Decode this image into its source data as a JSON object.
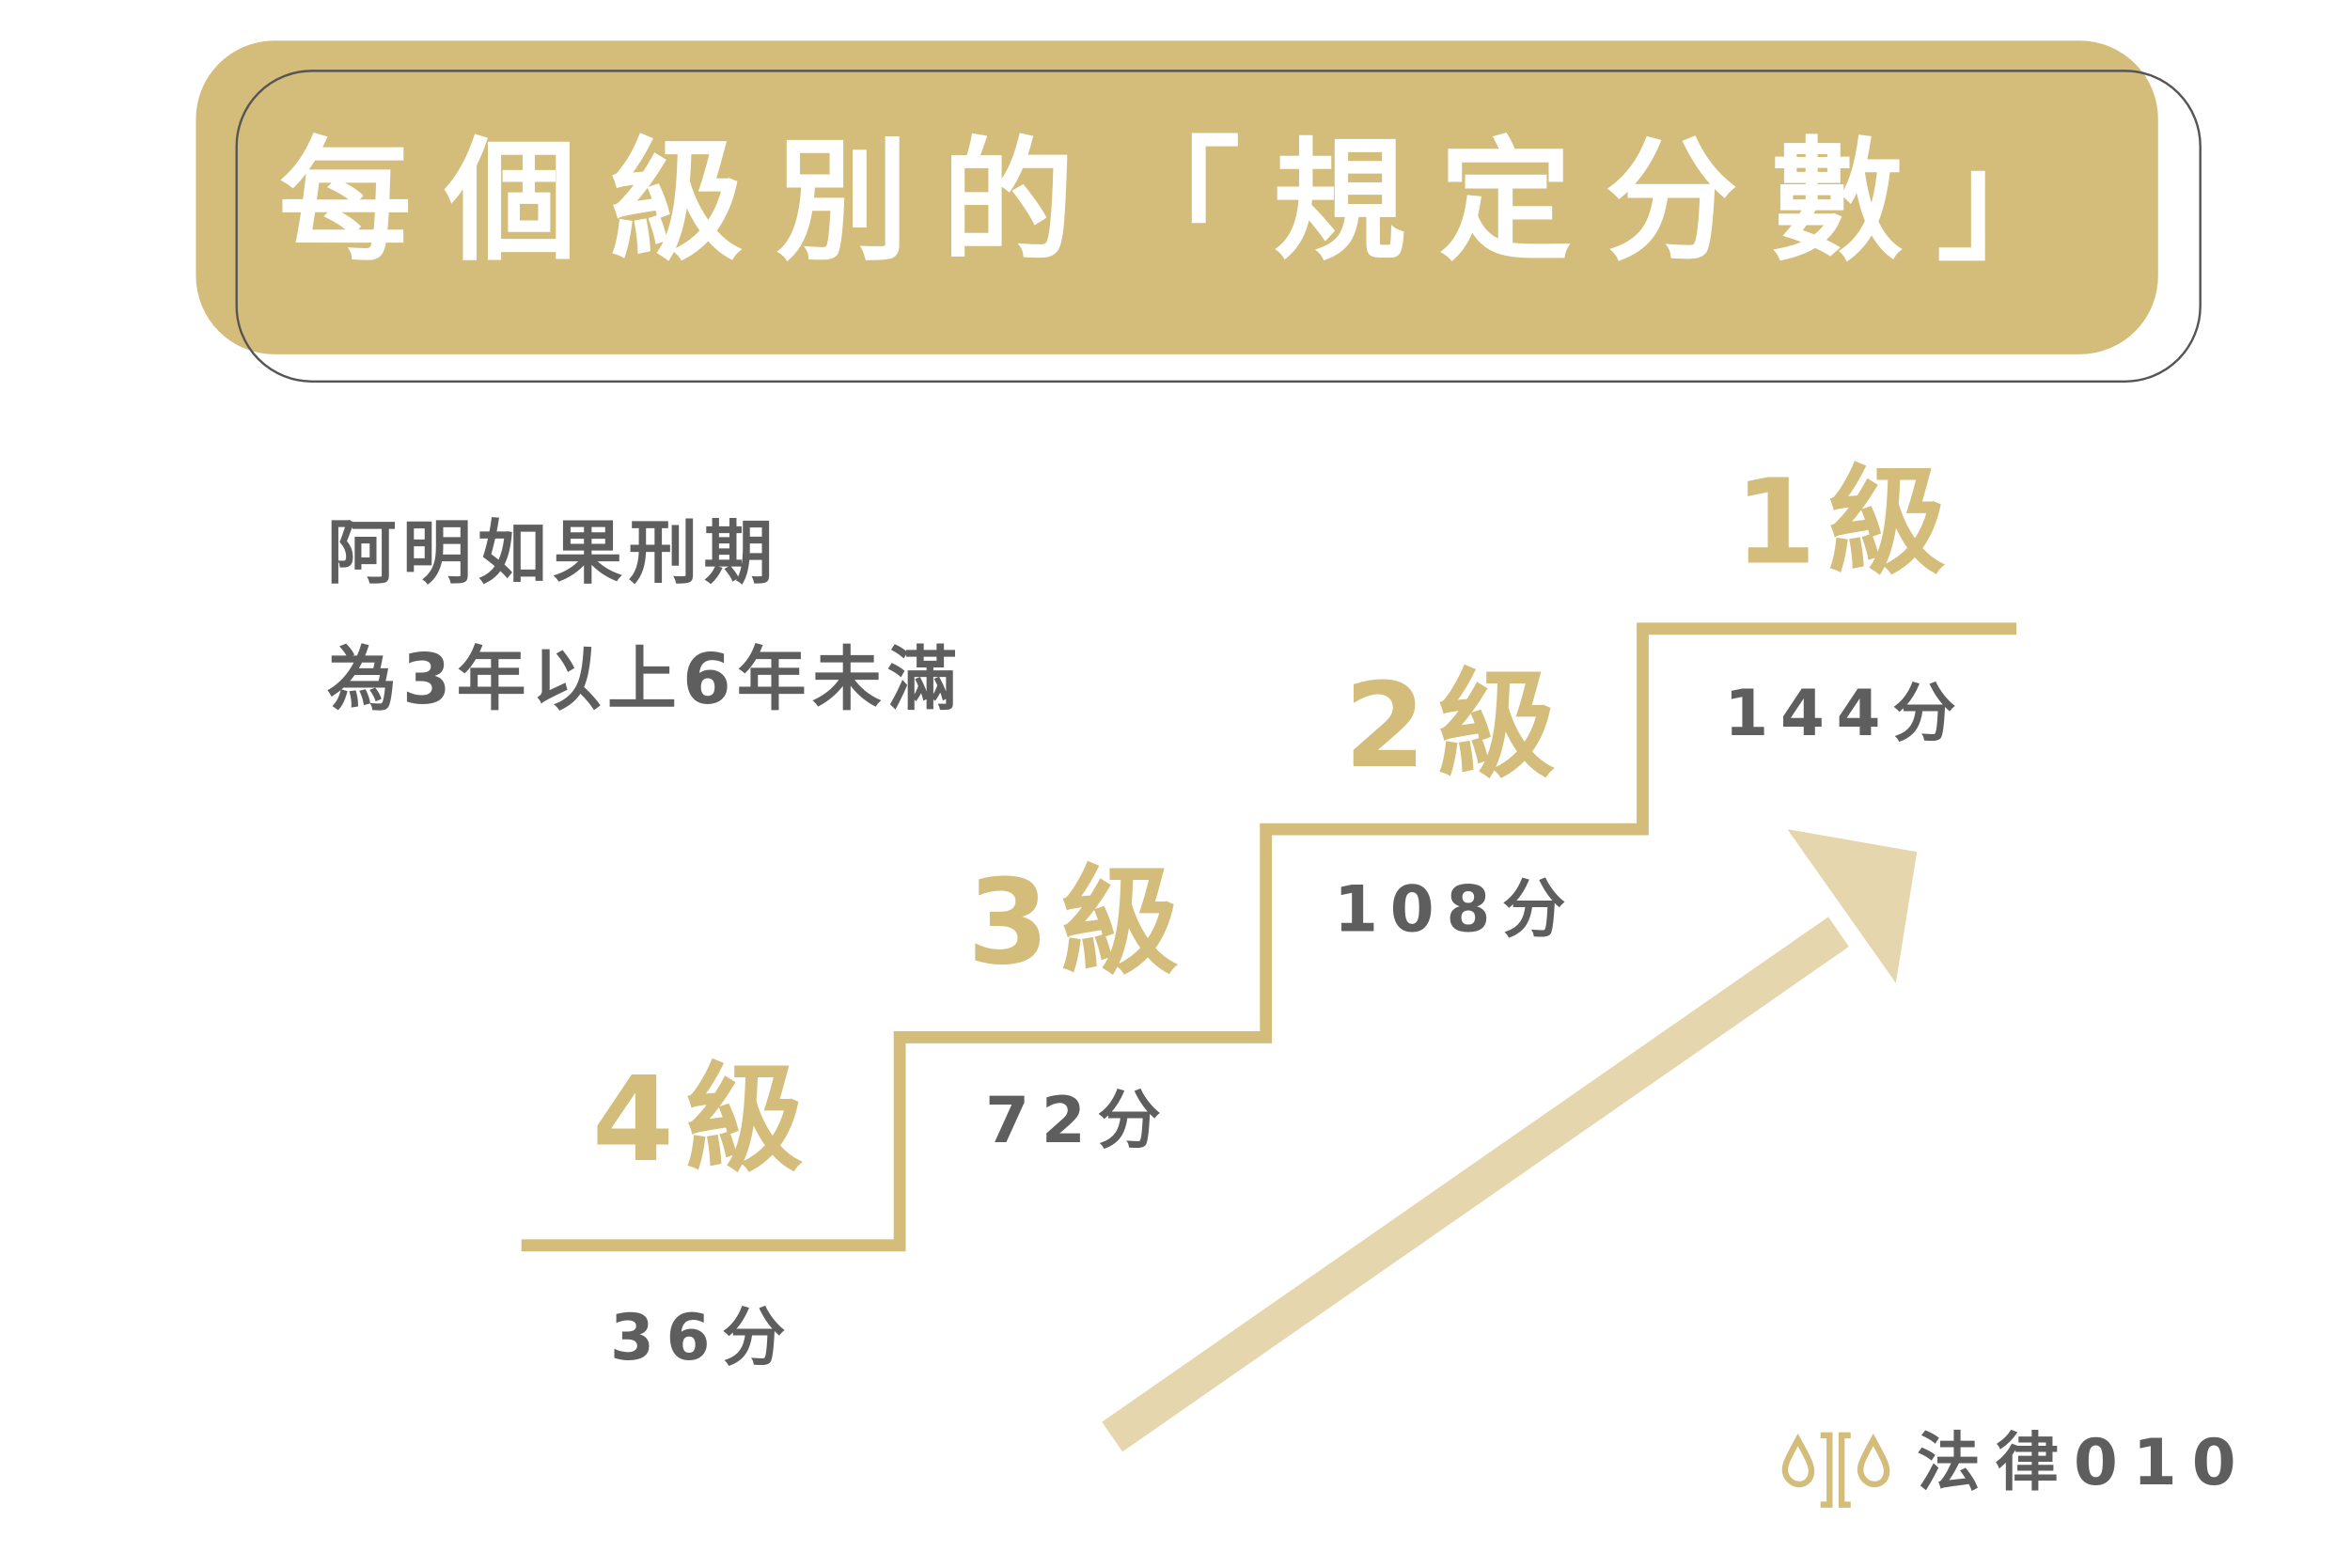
{
  "header": {
    "title": "每個級別的「規定分數」"
  },
  "description": [
    "阿明如果刑期",
    "為3年以上6年未滿"
  ],
  "levels": [
    {
      "level": "4級",
      "score": "36分"
    },
    {
      "level": "3級",
      "score": "72分"
    },
    {
      "level": "2級",
      "score": "108分"
    },
    {
      "level": "1級",
      "score": "144分"
    }
  ],
  "brand": "法律010"
}
